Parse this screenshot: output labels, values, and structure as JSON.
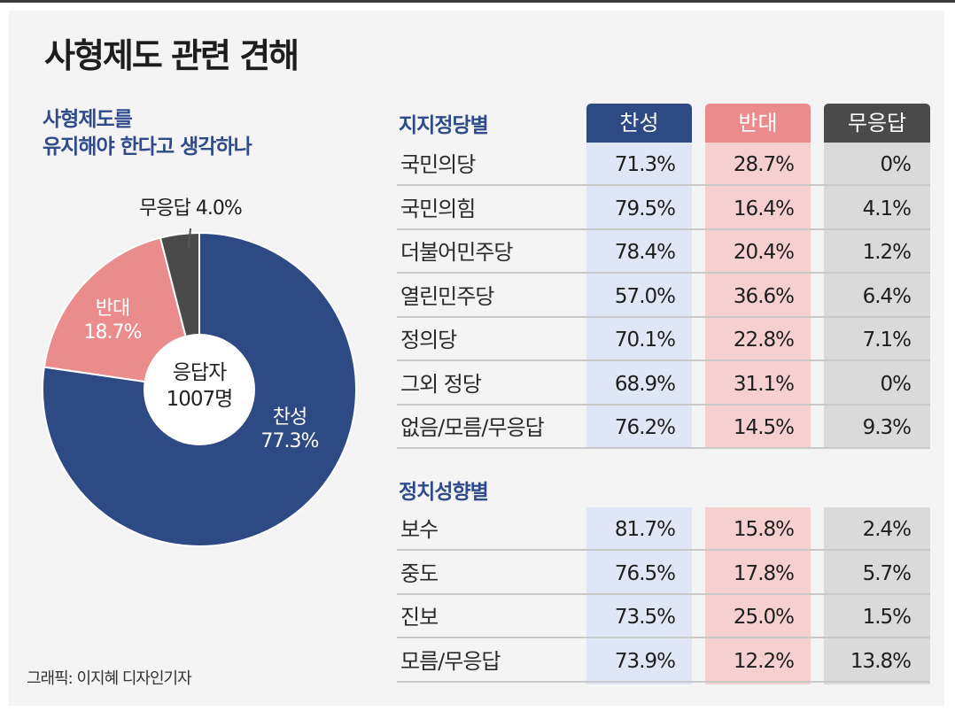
{
  "title": "사형제도 관련 견해",
  "question_lines": [
    "사형제도를",
    "유지해야 한다고 생각하나"
  ],
  "credit": "그래픽: 이지혜 디자인기자",
  "colors": {
    "yes": "#2e4a84",
    "no": "#eb8c8c",
    "na": "#4a4a4a",
    "question": "#2f4b8a"
  },
  "chart_data": [
    {
      "type": "pie",
      "donut": true,
      "center_label": [
        "응답자",
        "1007명"
      ],
      "slices": [
        {
          "label": "찬성",
          "value": 77.3,
          "value_text": "77.3%",
          "color": "#2e4a84"
        },
        {
          "label": "반대",
          "value": 18.7,
          "value_text": "18.7%",
          "color": "#eb8c8c"
        },
        {
          "label": "무응답",
          "value": 4.0,
          "value_text": "4.0%",
          "color": "#4a4a4a"
        }
      ]
    },
    {
      "type": "table",
      "columns": [
        "찬성",
        "반대",
        "무응답"
      ],
      "sections": [
        {
          "title": "지지정당별",
          "rows": [
            {
              "label": "국민의당",
              "values": [
                "71.3%",
                "28.7%",
                "0%"
              ]
            },
            {
              "label": "국민의힘",
              "values": [
                "79.5%",
                "16.4%",
                "4.1%"
              ]
            },
            {
              "label": "더불어민주당",
              "values": [
                "78.4%",
                "20.4%",
                "1.2%"
              ]
            },
            {
              "label": "열린민주당",
              "values": [
                "57.0%",
                "36.6%",
                "6.4%"
              ]
            },
            {
              "label": "정의당",
              "values": [
                "70.1%",
                "22.8%",
                "7.1%"
              ]
            },
            {
              "label": "그외 정당",
              "values": [
                "68.9%",
                "31.1%",
                "0%"
              ]
            },
            {
              "label": "없음/모름/무응답",
              "values": [
                "76.2%",
                "14.5%",
                "9.3%"
              ]
            }
          ]
        },
        {
          "title": "정치성향별",
          "rows": [
            {
              "label": "보수",
              "values": [
                "81.7%",
                "15.8%",
                "2.4%"
              ]
            },
            {
              "label": "중도",
              "values": [
                "76.5%",
                "17.8%",
                "5.7%"
              ]
            },
            {
              "label": "진보",
              "values": [
                "73.5%",
                "25.0%",
                "1.5%"
              ]
            },
            {
              "label": "모름/무응답",
              "values": [
                "73.9%",
                "12.2%",
                "13.8%"
              ]
            }
          ]
        }
      ]
    }
  ]
}
